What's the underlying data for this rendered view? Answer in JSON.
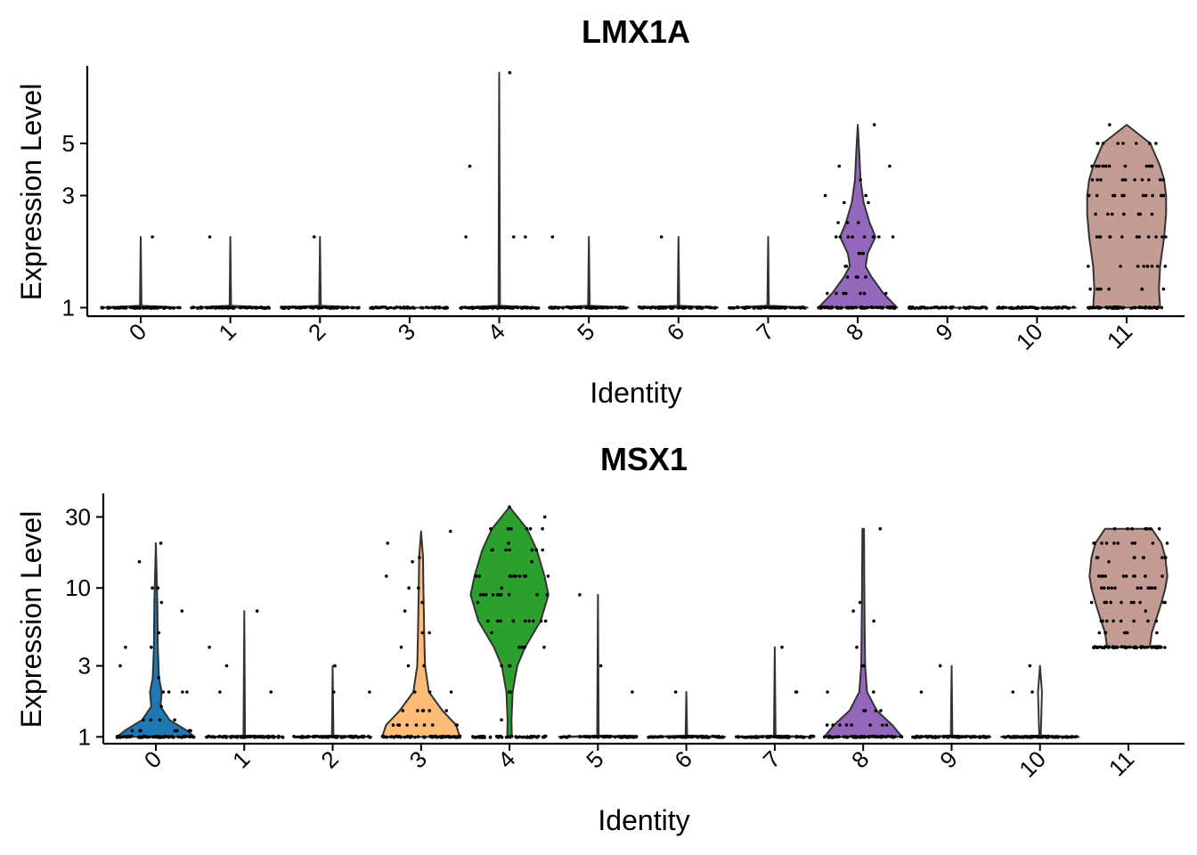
{
  "chart_data": [
    {
      "type": "violin",
      "title": "LMX1A",
      "xlabel": "Identity",
      "ylabel": "Expression Level",
      "y_scale": "log",
      "ylim": [
        0.92,
        10.5
      ],
      "y_ticks": [
        {
          "value": 1,
          "label": "1"
        },
        {
          "value": 3,
          "label": "3"
        },
        {
          "value": 5,
          "label": "5"
        }
      ],
      "categories": [
        "0",
        "1",
        "2",
        "3",
        "4",
        "5",
        "6",
        "7",
        "8",
        "9",
        "10",
        "11"
      ],
      "series": [
        {
          "cluster": "0",
          "color": "#ffffff",
          "max": 2,
          "profile": [
            [
              1,
              1.0
            ],
            [
              1.02,
              0.02
            ],
            [
              2,
              0.0
            ]
          ],
          "outliers": [
            2
          ]
        },
        {
          "cluster": "1",
          "color": "#ffffff",
          "max": 2,
          "profile": [
            [
              1,
              1.0
            ],
            [
              1.02,
              0.02
            ],
            [
              2,
              0.0
            ]
          ],
          "outliers": [
            2
          ]
        },
        {
          "cluster": "2",
          "color": "#ffffff",
          "max": 2,
          "profile": [
            [
              1,
              1.0
            ],
            [
              1.02,
              0.02
            ],
            [
              2,
              0.0
            ]
          ],
          "outliers": [
            2
          ]
        },
        {
          "cluster": "3",
          "color": "#ffffff",
          "max": 1,
          "profile": [
            [
              1,
              1.0
            ]
          ],
          "outliers": []
        },
        {
          "cluster": "4",
          "color": "#ffffff",
          "max": 10,
          "profile": [
            [
              1,
              1.0
            ],
            [
              1.02,
              0.02
            ],
            [
              10,
              0.0
            ]
          ],
          "outliers": [
            2,
            2,
            2,
            4,
            10
          ]
        },
        {
          "cluster": "5",
          "color": "#ffffff",
          "max": 2,
          "profile": [
            [
              1,
              1.0
            ],
            [
              1.02,
              0.02
            ],
            [
              2,
              0.0
            ]
          ],
          "outliers": [
            2
          ]
        },
        {
          "cluster": "6",
          "color": "#ffffff",
          "max": 2,
          "profile": [
            [
              1,
              1.0
            ],
            [
              1.02,
              0.02
            ],
            [
              2,
              0.0
            ]
          ],
          "outliers": [
            2
          ]
        },
        {
          "cluster": "7",
          "color": "#ffffff",
          "max": 2,
          "profile": [
            [
              1,
              1.0
            ],
            [
              1.02,
              0.02
            ],
            [
              2,
              0.0
            ]
          ],
          "outliers": []
        },
        {
          "cluster": "8",
          "color": "#9467bd",
          "max": 6,
          "profile": [
            [
              1,
              1.0
            ],
            [
              1.15,
              0.65
            ],
            [
              1.35,
              0.35
            ],
            [
              1.5,
              0.2
            ],
            [
              1.7,
              0.25
            ],
            [
              2,
              0.45
            ],
            [
              2.3,
              0.3
            ],
            [
              2.8,
              0.15
            ],
            [
              3.5,
              0.07
            ],
            [
              4.5,
              0.04
            ],
            [
              6,
              0.0
            ]
          ],
          "outliers": [
            2,
            2,
            2,
            3,
            3,
            4,
            4,
            6
          ]
        },
        {
          "cluster": "9",
          "color": "#ffffff",
          "max": 1,
          "profile": [
            [
              1,
              1.0
            ]
          ],
          "outliers": []
        },
        {
          "cluster": "10",
          "color": "#ffffff",
          "max": 1,
          "profile": [
            [
              1,
              1.0
            ]
          ],
          "outliers": []
        },
        {
          "cluster": "11",
          "color": "#c49c94",
          "max": 6,
          "profile": [
            [
              1,
              0.85
            ],
            [
              1.2,
              0.82
            ],
            [
              1.5,
              0.85
            ],
            [
              2,
              0.95
            ],
            [
              2.5,
              1.0
            ],
            [
              3,
              1.0
            ],
            [
              3.5,
              0.95
            ],
            [
              4,
              0.85
            ],
            [
              5,
              0.6
            ],
            [
              6,
              0.0
            ]
          ],
          "outliers": [
            2,
            2,
            3,
            3,
            4,
            4,
            5,
            5,
            6
          ]
        }
      ]
    },
    {
      "type": "violin",
      "title": "MSX1",
      "xlabel": "Identity",
      "ylabel": "Expression Level",
      "y_scale": "log",
      "ylim": [
        0.9,
        42
      ],
      "y_ticks": [
        {
          "value": 1,
          "label": "1"
        },
        {
          "value": 3,
          "label": "3"
        },
        {
          "value": 10,
          "label": "10"
        },
        {
          "value": 30,
          "label": "30"
        }
      ],
      "categories": [
        "0",
        "1",
        "2",
        "3",
        "4",
        "5",
        "6",
        "7",
        "8",
        "9",
        "10",
        "11"
      ],
      "series": [
        {
          "cluster": "0",
          "color": "#1f77b4",
          "max": 20,
          "profile": [
            [
              1,
              1.0
            ],
            [
              1.1,
              0.8
            ],
            [
              1.3,
              0.35
            ],
            [
              1.6,
              0.12
            ],
            [
              2,
              0.15
            ],
            [
              2.5,
              0.08
            ],
            [
              4,
              0.05
            ],
            [
              8,
              0.04
            ],
            [
              20,
              0.0
            ]
          ],
          "outliers": [
            2,
            2,
            3,
            4,
            5,
            7,
            8,
            10,
            10,
            15,
            20
          ]
        },
        {
          "cluster": "1",
          "color": "#ffffff",
          "max": 7,
          "profile": [
            [
              1,
              1.0
            ],
            [
              1.02,
              0.02
            ],
            [
              7,
              0.0
            ]
          ],
          "outliers": [
            2,
            2,
            3,
            4,
            7
          ]
        },
        {
          "cluster": "2",
          "color": "#ffffff",
          "max": 3,
          "profile": [
            [
              1,
              1.0
            ],
            [
              1.02,
              0.02
            ],
            [
              3,
              0.0
            ]
          ],
          "outliers": [
            2,
            2,
            3
          ]
        },
        {
          "cluster": "3",
          "color": "#ffbb78",
          "max": 24,
          "profile": [
            [
              1,
              1.0
            ],
            [
              1.2,
              0.9
            ],
            [
              1.5,
              0.55
            ],
            [
              2,
              0.2
            ],
            [
              3,
              0.1
            ],
            [
              5,
              0.08
            ],
            [
              10,
              0.06
            ],
            [
              16,
              0.05
            ],
            [
              24,
              0.0
            ]
          ],
          "outliers": [
            2,
            3,
            4,
            5,
            7,
            8,
            10,
            12,
            15,
            20,
            24
          ]
        },
        {
          "cluster": "4",
          "color": "#2ca02c",
          "max": 35,
          "profile": [
            [
              1,
              0.06
            ],
            [
              1.3,
              0.05
            ],
            [
              2,
              0.08
            ],
            [
              3,
              0.2
            ],
            [
              4,
              0.4
            ],
            [
              6,
              0.8
            ],
            [
              9,
              1.0
            ],
            [
              12,
              0.9
            ],
            [
              18,
              0.7
            ],
            [
              25,
              0.45
            ],
            [
              35,
              0.0
            ]
          ],
          "outliers": [
            1,
            1,
            2,
            3,
            4,
            5,
            6,
            8,
            10,
            12,
            15,
            20,
            25,
            30,
            35
          ]
        },
        {
          "cluster": "5",
          "color": "#ffffff",
          "max": 9,
          "profile": [
            [
              1,
              1.0
            ],
            [
              1.02,
              0.02
            ],
            [
              9,
              0.0
            ]
          ],
          "outliers": [
            2,
            3,
            9
          ]
        },
        {
          "cluster": "6",
          "color": "#ffffff",
          "max": 2,
          "profile": [
            [
              1,
              1.0
            ],
            [
              1.02,
              0.02
            ],
            [
              2,
              0.0
            ]
          ],
          "outliers": [
            2
          ]
        },
        {
          "cluster": "7",
          "color": "#ffffff",
          "max": 4,
          "profile": [
            [
              1,
              1.0
            ],
            [
              1.02,
              0.02
            ],
            [
              4,
              0.0
            ]
          ],
          "outliers": [
            2,
            2,
            4
          ]
        },
        {
          "cluster": "8",
          "color": "#9467bd",
          "max": 25,
          "profile": [
            [
              1,
              1.0
            ],
            [
              1.2,
              0.75
            ],
            [
              1.5,
              0.35
            ],
            [
              2,
              0.1
            ],
            [
              3,
              0.05
            ],
            [
              5,
              0.04
            ],
            [
              10,
              0.03
            ],
            [
              25,
              0.02
            ]
          ],
          "outliers": [
            2,
            3,
            4,
            6,
            7,
            8,
            25
          ]
        },
        {
          "cluster": "9",
          "color": "#ffffff",
          "max": 3,
          "profile": [
            [
              1,
              1.0
            ],
            [
              1.02,
              0.02
            ],
            [
              3,
              0.0
            ]
          ],
          "outliers": [
            2,
            3
          ]
        },
        {
          "cluster": "10",
          "color": "#ffffff",
          "max": 3,
          "profile": [
            [
              1,
              1.0
            ],
            [
              1.02,
              0.02
            ],
            [
              2,
              0.05
            ],
            [
              3,
              0.0
            ]
          ],
          "outliers": [
            2,
            3
          ]
        },
        {
          "cluster": "11",
          "color": "#c49c94",
          "max": 25,
          "profile": [
            [
              4,
              0.55
            ],
            [
              5,
              0.6
            ],
            [
              6,
              0.7
            ],
            [
              8,
              0.85
            ],
            [
              10,
              0.95
            ],
            [
              12,
              1.0
            ],
            [
              16,
              0.95
            ],
            [
              20,
              0.85
            ],
            [
              25,
              0.6
            ]
          ],
          "outliers": [
            4,
            5,
            6,
            7,
            8,
            10,
            12,
            15,
            20,
            25
          ]
        }
      ]
    }
  ]
}
